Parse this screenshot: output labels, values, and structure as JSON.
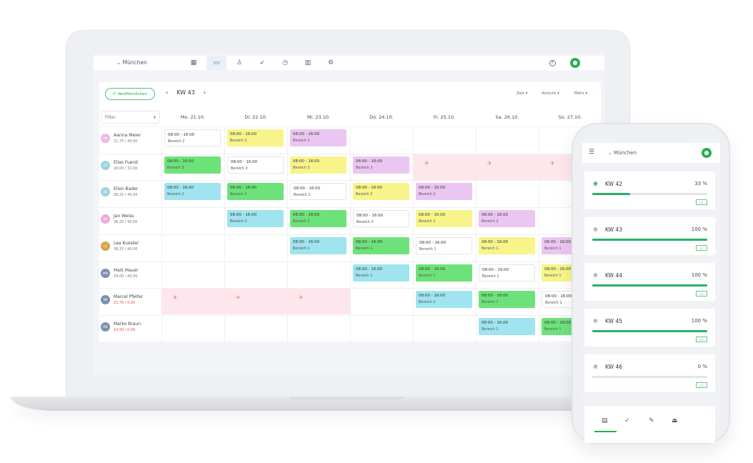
{
  "app": {
    "location": "München",
    "brand_color": "#27b04f"
  },
  "topnav": {
    "icons": [
      "grid-icon",
      "calendar-icon",
      "user-icon",
      "send-icon",
      "clock-icon",
      "chart-icon",
      "gear-icon"
    ],
    "active": "calendar-icon",
    "help": "?"
  },
  "toolbar": {
    "publish_label": "Veröffentlichen",
    "week": "KW 43",
    "prev": "‹",
    "next": "›",
    "menus": [
      "Zeit ▾",
      "Ansicht ▾",
      "Mehr ▾"
    ]
  },
  "filter": {
    "label": "Filter",
    "arrow": "▾"
  },
  "days": [
    "Mo. 21.10.",
    "Di. 22.10.",
    "Mi. 23.10.",
    "Do. 24.10.",
    "Fr. 25.10.",
    "Sa. 26.10.",
    "So. 27.10."
  ],
  "shift_time": "08:00 - 16:00",
  "vacation_icon": "✈",
  "employees": [
    {
      "initials": "AM",
      "name": "Aarina Meier",
      "hours": "21,75 / 40,00",
      "over": false,
      "color": "#f0b6e4",
      "shifts": [
        [
          "white",
          "Bereich 2"
        ],
        [
          "yellow",
          "Bereich 2"
        ],
        [
          "purple",
          "Bereich 2"
        ],
        null,
        null,
        null,
        null
      ]
    },
    {
      "initials": "EF",
      "name": "Elias Fuerst",
      "hours": "29,00 / 32,00",
      "over": false,
      "color": "#9fd3e0",
      "shifts": [
        [
          "green",
          "Bereich 3"
        ],
        [
          "white",
          "Bereich 3"
        ],
        [
          "yellow",
          "Bereich 3"
        ],
        [
          "purple",
          "Bereich 3"
        ],
        "vacation",
        "vacation",
        "vacation"
      ]
    },
    {
      "initials": "EB",
      "name": "Elion Bader",
      "hours": "36,25 / 40,00",
      "over": false,
      "color": "#9fd3e0",
      "shifts": [
        [
          "cyan",
          "Bereich 2"
        ],
        [
          "green",
          "Bereich 2"
        ],
        [
          "white",
          "Bereich 2"
        ],
        [
          "yellow",
          "Bereich 2"
        ],
        [
          "purple",
          "Bereich 2"
        ],
        null,
        null
      ]
    },
    {
      "initials": "JW",
      "name": "Jan Weiss",
      "hours": "38,25 / 40,00",
      "over": false,
      "color": "#eeaadf",
      "shifts": [
        null,
        [
          "cyan",
          "Bereich 2"
        ],
        [
          "green",
          "Bereich 2"
        ],
        [
          "white",
          "Bereich 2"
        ],
        [
          "yellow",
          "Bereich 2"
        ],
        [
          "purple",
          "Bereich 2"
        ],
        null
      ]
    },
    {
      "initials": "LK",
      "name": "Lea Kuester",
      "hours": "38,25 / 40,00",
      "over": false,
      "color": "#d1a54a",
      "shifts": [
        null,
        null,
        [
          "cyan",
          "Bereich 1"
        ],
        [
          "green",
          "Bereich 1"
        ],
        [
          "white",
          "Bereich 1"
        ],
        [
          "yellow",
          "Bereich 1"
        ],
        [
          "purple",
          "Bereich 1"
        ]
      ]
    },
    {
      "initials": "MM",
      "name": "Maik Mauer",
      "hours": "29,00 / 40,00",
      "over": false,
      "color": "#7d8fae",
      "shifts": [
        null,
        null,
        null,
        [
          "cyan",
          "Bereich 1"
        ],
        [
          "green",
          "Bereich 1"
        ],
        [
          "white",
          "Bereich 1"
        ],
        [
          "yellow",
          "Bereich 1"
        ]
      ]
    },
    {
      "initials": "MP",
      "name": "Marcel Pfeifer",
      "hours": "21,75 / 0,00",
      "over": true,
      "color": "#7d8fae",
      "shifts": [
        "vacation",
        "vacation",
        "vacation",
        null,
        [
          "cyan",
          "Bereich 1"
        ],
        [
          "green",
          "Bereich 1"
        ],
        [
          "white",
          "Bereich 1"
        ]
      ]
    },
    {
      "initials": "MB",
      "name": "Marko Braun",
      "hours": "14,50 / 0,00",
      "over": true,
      "color": "#7d8fae",
      "shifts": [
        null,
        null,
        null,
        null,
        null,
        [
          "cyan",
          "Bereich 1"
        ],
        [
          "green",
          "Bereich 1"
        ]
      ]
    }
  ],
  "shift_colors": {
    "white": "#ffffff",
    "yellow": "#f7f58a",
    "purple": "#ecc6f2",
    "green": "#6ee27a",
    "cyan": "#9fe4ef"
  },
  "phone": {
    "location": "München",
    "menu_icon": "☰",
    "weeks": [
      {
        "label": "KW 42",
        "percent": 33,
        "active": true
      },
      {
        "label": "KW 43",
        "percent": 100,
        "active": false
      },
      {
        "label": "KW 44",
        "percent": 100,
        "active": false
      },
      {
        "label": "KW 45",
        "percent": 100,
        "active": false
      },
      {
        "label": "KW 46",
        "percent": 0,
        "active": false
      }
    ],
    "tag": "⊙1",
    "tabs": [
      "chat-icon",
      "check-icon",
      "pencil-icon",
      "stamp-icon"
    ]
  }
}
